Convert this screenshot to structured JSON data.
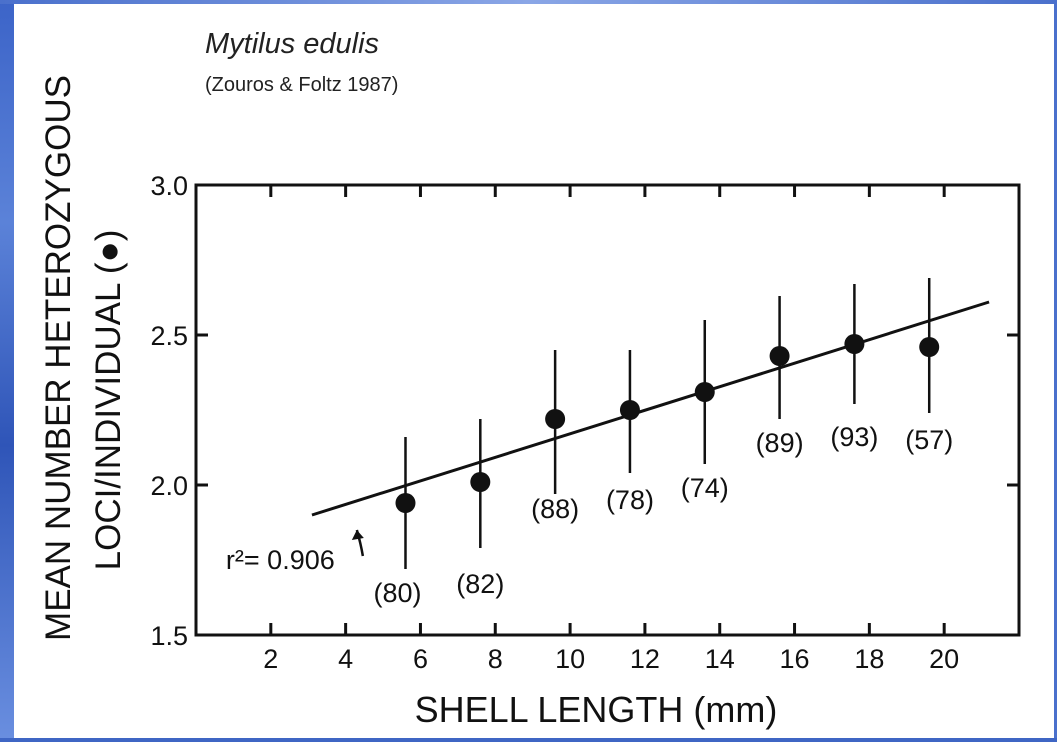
{
  "header": {
    "title": "Mytilus edulis",
    "citation": "(Zouros & Foltz 1987)"
  },
  "chart_data": {
    "type": "scatter",
    "title": "",
    "xlabel": "SHELL LENGTH (mm)",
    "ylabel_line1": "MEAN NUMBER HETEROZYGOUS",
    "ylabel_line2": "LOCI/INDIVIDUAL (●)",
    "xlim": [
      0,
      22
    ],
    "ylim": [
      1.5,
      3.0
    ],
    "x_ticks": [
      2,
      4,
      6,
      8,
      10,
      12,
      14,
      16,
      18,
      20
    ],
    "y_ticks": [
      1.5,
      2.0,
      2.5,
      3.0
    ],
    "y_tick_labels": [
      "1.5",
      "2.0",
      "2.5",
      "3.0"
    ],
    "series": [
      {
        "points": [
          {
            "x": 5.6,
            "y": 1.94,
            "err_low": 1.72,
            "err_high": 2.16,
            "n_label": "(80)"
          },
          {
            "x": 7.6,
            "y": 2.01,
            "err_low": 1.79,
            "err_high": 2.22,
            "n_label": "(82)"
          },
          {
            "x": 9.6,
            "y": 2.22,
            "err_low": 1.97,
            "err_high": 2.45,
            "n_label": "(88)"
          },
          {
            "x": 11.6,
            "y": 2.25,
            "err_low": 2.04,
            "err_high": 2.45,
            "n_label": "(78)"
          },
          {
            "x": 13.6,
            "y": 2.31,
            "err_low": 2.07,
            "err_high": 2.55,
            "n_label": "(74)"
          },
          {
            "x": 15.6,
            "y": 2.43,
            "err_low": 2.22,
            "err_high": 2.63,
            "n_label": "(89)"
          },
          {
            "x": 17.6,
            "y": 2.47,
            "err_low": 2.27,
            "err_high": 2.67,
            "n_label": "(93)"
          },
          {
            "x": 19.6,
            "y": 2.46,
            "err_low": 2.24,
            "err_high": 2.69,
            "n_label": "(57)"
          }
        ]
      }
    ],
    "regression": {
      "x_start": 3.1,
      "y_start": 1.9,
      "x_end": 21.2,
      "y_end": 2.61,
      "label": "r²= 0.906"
    }
  }
}
